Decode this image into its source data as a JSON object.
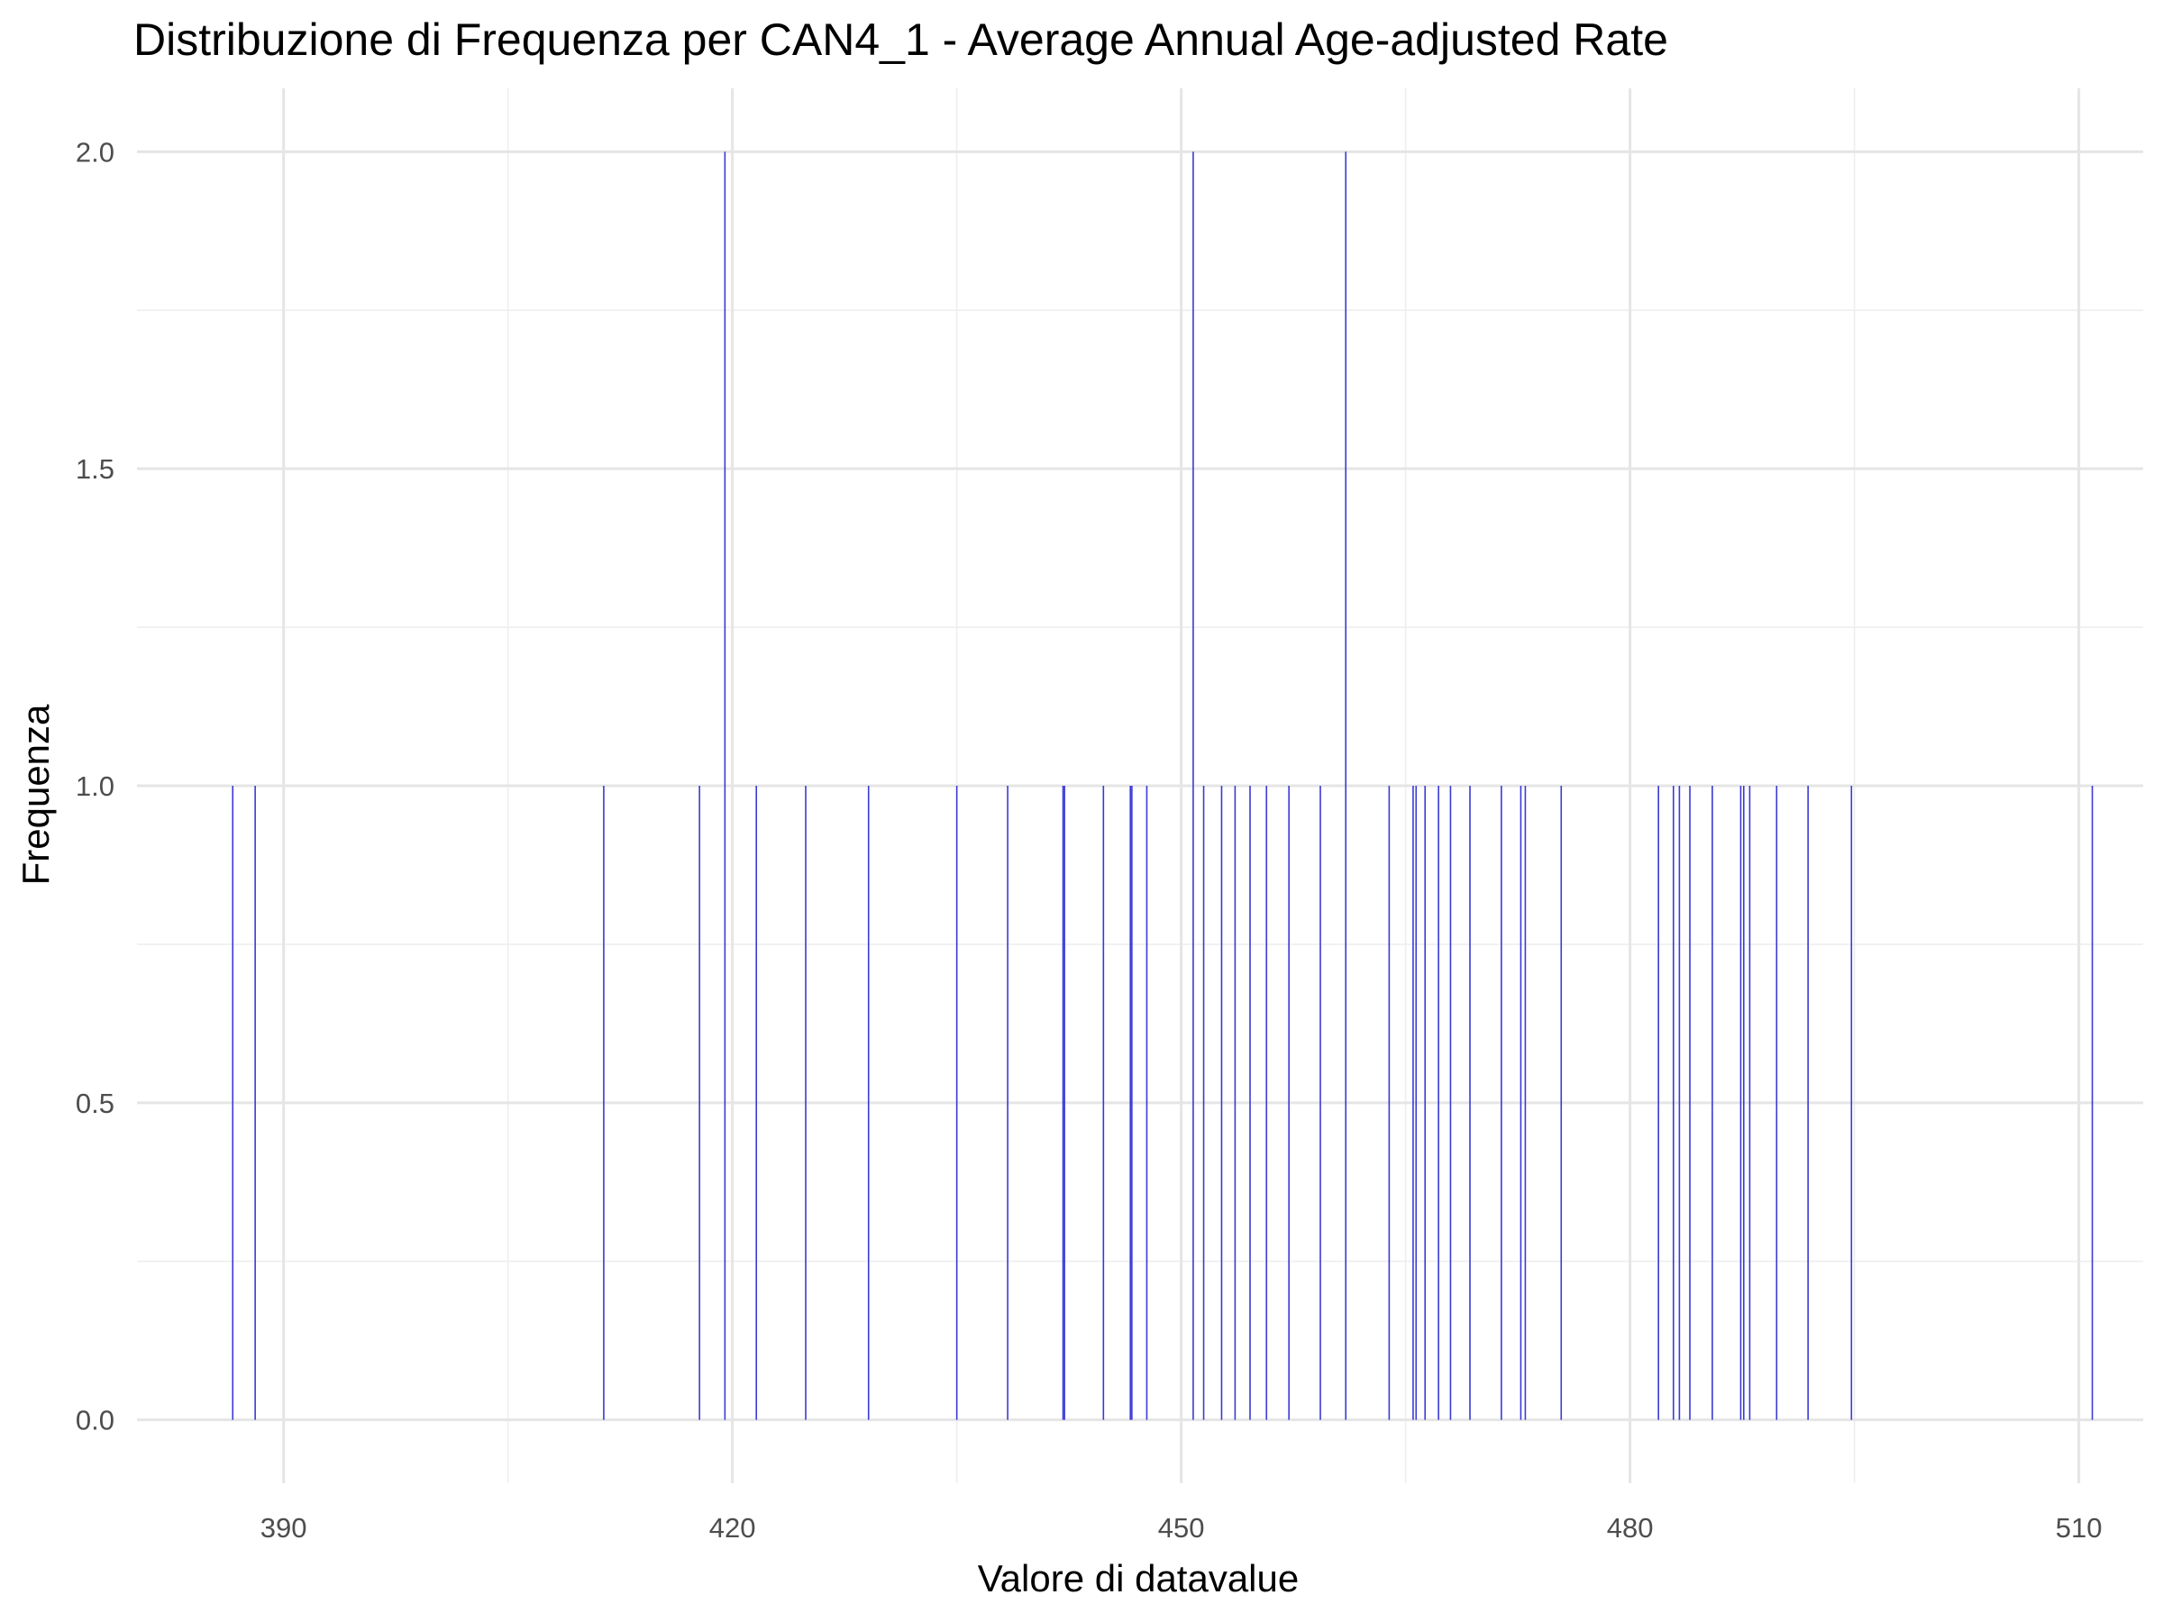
{
  "chart_data": {
    "type": "bar",
    "title": "Distribuzione di Frequenza per CAN4_1 - Average Annual Age-adjusted Rate",
    "xlabel": "Valore di datavalue",
    "ylabel": "Frequenza",
    "xlim": [
      380.2,
      514.3
    ],
    "ylim": [
      -0.1,
      2.1
    ],
    "x_ticks": [
      390,
      420,
      450,
      480,
      510
    ],
    "x_tick_labels": [
      "390",
      "420",
      "450",
      "480",
      "510"
    ],
    "y_ticks": [
      0,
      0.5,
      1,
      1.5,
      2
    ],
    "y_tick_labels": [
      "0.0",
      "0.5",
      "1.0",
      "1.5",
      "2.0"
    ],
    "bar_color": "#3a3ad6",
    "grid": true,
    "legend": "none",
    "bars": [
      {
        "x": 386.6,
        "count": 1
      },
      {
        "x": 388.1,
        "count": 1
      },
      {
        "x": 411.4,
        "count": 1
      },
      {
        "x": 417.8,
        "count": 1
      },
      {
        "x": 419.5,
        "count": 2
      },
      {
        "x": 421.6,
        "count": 1
      },
      {
        "x": 424.9,
        "count": 1
      },
      {
        "x": 429.1,
        "count": 1
      },
      {
        "x": 435.0,
        "count": 1
      },
      {
        "x": 438.4,
        "count": 1
      },
      {
        "x": 442.1,
        "count": 1
      },
      {
        "x": 442.2,
        "count": 1
      },
      {
        "x": 444.8,
        "count": 1
      },
      {
        "x": 446.6,
        "count": 1
      },
      {
        "x": 446.7,
        "count": 1
      },
      {
        "x": 447.7,
        "count": 1
      },
      {
        "x": 450.8,
        "count": 2
      },
      {
        "x": 451.5,
        "count": 1
      },
      {
        "x": 452.7,
        "count": 1
      },
      {
        "x": 453.6,
        "count": 1
      },
      {
        "x": 454.6,
        "count": 1
      },
      {
        "x": 455.7,
        "count": 1
      },
      {
        "x": 457.2,
        "count": 1
      },
      {
        "x": 459.3,
        "count": 1
      },
      {
        "x": 461.0,
        "count": 2
      },
      {
        "x": 463.9,
        "count": 1
      },
      {
        "x": 465.5,
        "count": 1
      },
      {
        "x": 465.7,
        "count": 1
      },
      {
        "x": 466.3,
        "count": 1
      },
      {
        "x": 467.2,
        "count": 1
      },
      {
        "x": 468.0,
        "count": 1
      },
      {
        "x": 469.3,
        "count": 1
      },
      {
        "x": 471.4,
        "count": 1
      },
      {
        "x": 472.7,
        "count": 1
      },
      {
        "x": 473.0,
        "count": 1
      },
      {
        "x": 475.4,
        "count": 1
      },
      {
        "x": 481.9,
        "count": 1
      },
      {
        "x": 482.9,
        "count": 1
      },
      {
        "x": 483.3,
        "count": 1
      },
      {
        "x": 484.0,
        "count": 1
      },
      {
        "x": 485.5,
        "count": 1
      },
      {
        "x": 487.4,
        "count": 1
      },
      {
        "x": 487.6,
        "count": 1
      },
      {
        "x": 488.0,
        "count": 1
      },
      {
        "x": 489.8,
        "count": 1
      },
      {
        "x": 491.9,
        "count": 1
      },
      {
        "x": 494.8,
        "count": 1
      },
      {
        "x": 510.9,
        "count": 1
      }
    ]
  }
}
